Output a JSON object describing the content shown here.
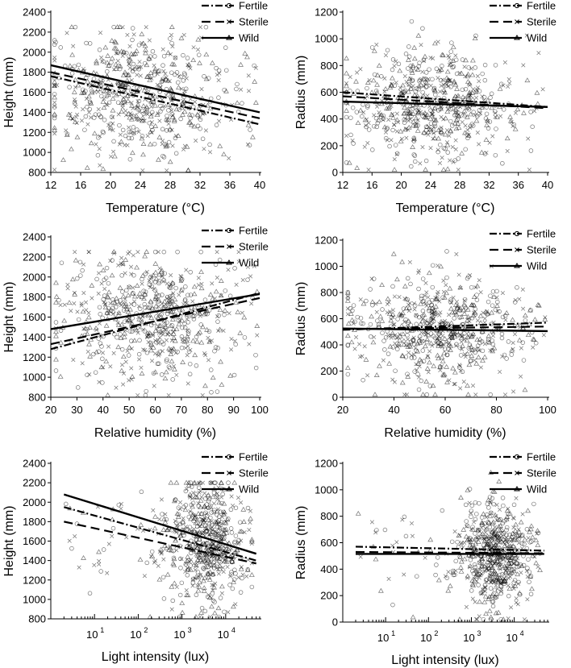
{
  "chart_data": [
    {
      "type": "scatter",
      "title": "",
      "xlabel": "Temperature (°C)",
      "ylabel": "Height (mm)",
      "xscale": "linear",
      "xlim": [
        12,
        40
      ],
      "ylim": [
        800,
        2400
      ],
      "xticks": [
        12,
        16,
        20,
        24,
        28,
        32,
        36,
        40
      ],
      "yticks": [
        800,
        1000,
        1200,
        1400,
        1600,
        1800,
        2000,
        2200,
        2400
      ],
      "legend": [
        "Fertile",
        "Sterile",
        "Wild"
      ],
      "legend_position": "top-right",
      "cloud": {
        "x_center": 24,
        "x_spread": 5.5,
        "x_min": 12.5,
        "x_max": 39.5,
        "y_center": 1600,
        "y_spread": 330,
        "y_min": 820,
        "y_max": 2250,
        "log_x": false
      },
      "series": [
        {
          "name": "Fertile",
          "x": [
            12,
            40
          ],
          "y": [
            1760,
            1280
          ]
        },
        {
          "name": "Sterile",
          "x": [
            12,
            40
          ],
          "y": [
            1800,
            1340
          ]
        },
        {
          "name": "Wild",
          "x": [
            12,
            40
          ],
          "y": [
            1870,
            1400
          ]
        }
      ]
    },
    {
      "type": "scatter",
      "title": "",
      "xlabel": "Temperature (°C)",
      "ylabel": "Radius (mm)",
      "xscale": "linear",
      "xlim": [
        12,
        40
      ],
      "ylim": [
        0,
        1200
      ],
      "xticks": [
        12,
        16,
        20,
        24,
        28,
        32,
        36,
        40
      ],
      "yticks": [
        0,
        200,
        400,
        600,
        800,
        1000,
        1200
      ],
      "legend": [
        "Fertile",
        "Sterile",
        "Wild"
      ],
      "legend_position": "top-right",
      "cloud": {
        "x_center": 24,
        "x_spread": 5.5,
        "x_min": 12.5,
        "x_max": 39.5,
        "y_center": 520,
        "y_spread": 210,
        "y_min": 20,
        "y_max": 1130,
        "log_x": false
      },
      "series": [
        {
          "name": "Fertile",
          "x": [
            12,
            40
          ],
          "y": [
            600,
            490
          ]
        },
        {
          "name": "Sterile",
          "x": [
            12,
            40
          ],
          "y": [
            570,
            480
          ]
        },
        {
          "name": "Wild",
          "x": [
            12,
            40
          ],
          "y": [
            530,
            490
          ]
        }
      ]
    },
    {
      "type": "scatter",
      "title": "",
      "xlabel": "Relative humidity (%)",
      "ylabel": "Height (mm)",
      "xscale": "linear",
      "xlim": [
        20,
        100
      ],
      "ylim": [
        800,
        2400
      ],
      "xticks": [
        20,
        30,
        40,
        50,
        60,
        70,
        80,
        90,
        100
      ],
      "yticks": [
        800,
        1000,
        1200,
        1400,
        1600,
        1800,
        2000,
        2200,
        2400
      ],
      "legend": [
        "Fertile",
        "Sterile",
        "Wild"
      ],
      "legend_position": "top-right",
      "cloud": {
        "x_center": 58,
        "x_spread": 17,
        "x_min": 22,
        "x_max": 99,
        "y_center": 1600,
        "y_spread": 320,
        "y_min": 820,
        "y_max": 2250,
        "log_x": false
      },
      "series": [
        {
          "name": "Fertile",
          "x": [
            20,
            100
          ],
          "y": [
            1280,
            1840
          ]
        },
        {
          "name": "Sterile",
          "x": [
            20,
            100
          ],
          "y": [
            1330,
            1790
          ]
        },
        {
          "name": "Wild",
          "x": [
            20,
            100
          ],
          "y": [
            1480,
            1830
          ]
        }
      ]
    },
    {
      "type": "scatter",
      "title": "",
      "xlabel": "Relative humidity (%)",
      "ylabel": "Radius (mm)",
      "xscale": "linear",
      "xlim": [
        20,
        100
      ],
      "ylim": [
        0,
        1200
      ],
      "xticks": [
        20,
        40,
        60,
        80,
        100
      ],
      "yticks": [
        0,
        200,
        400,
        600,
        800,
        1000,
        1200
      ],
      "legend": [
        "Fertile",
        "Sterile",
        "Wild"
      ],
      "legend_position": "top-right",
      "cloud": {
        "x_center": 57,
        "x_spread": 16,
        "x_min": 22,
        "x_max": 99,
        "y_center": 520,
        "y_spread": 200,
        "y_min": 20,
        "y_max": 1130,
        "log_x": false
      },
      "series": [
        {
          "name": "Fertile",
          "x": [
            20,
            100
          ],
          "y": [
            515,
            570
          ]
        },
        {
          "name": "Sterile",
          "x": [
            20,
            100
          ],
          "y": [
            520,
            540
          ]
        },
        {
          "name": "Wild",
          "x": [
            20,
            100
          ],
          "y": [
            525,
            505
          ]
        }
      ]
    },
    {
      "type": "scatter",
      "title": "",
      "xlabel": "Light intensity (lux)",
      "ylabel": "Height (mm)",
      "xscale": "log",
      "xlim": [
        1,
        60000
      ],
      "ylim": [
        800,
        2400
      ],
      "xticks": [
        10,
        100,
        1000,
        10000
      ],
      "xtick_labels": [
        "10",
        "10",
        "10",
        "10"
      ],
      "xtick_exponents": [
        "1",
        "2",
        "3",
        "4"
      ],
      "yticks": [
        800,
        1000,
        1200,
        1400,
        1600,
        1800,
        2000,
        2200,
        2400
      ],
      "legend": [
        "Fertile",
        "Sterile",
        "Wild"
      ],
      "legend_position": "top-right",
      "cloud": {
        "x_center": 3.55,
        "x_spread": 0.42,
        "x_min": 0.3,
        "x_max": 4.6,
        "y_center": 1600,
        "y_spread": 320,
        "y_min": 820,
        "y_max": 2200,
        "log_x": true
      },
      "series": [
        {
          "name": "Fertile",
          "x": [
            2,
            50000
          ],
          "y": [
            1950,
            1400
          ]
        },
        {
          "name": "Sterile",
          "x": [
            2,
            50000
          ],
          "y": [
            1800,
            1370
          ]
        },
        {
          "name": "Wild",
          "x": [
            2,
            50000
          ],
          "y": [
            2080,
            1470
          ]
        }
      ]
    },
    {
      "type": "scatter",
      "title": "",
      "xlabel": "Light intensity (lux)",
      "ylabel": "Radius (mm)",
      "xscale": "log",
      "xlim": [
        1,
        60000
      ],
      "ylim": [
        0,
        1200
      ],
      "xticks": [
        10,
        100,
        1000,
        10000
      ],
      "xtick_labels": [
        "10",
        "10",
        "10",
        "10"
      ],
      "xtick_exponents": [
        "1",
        "2",
        "3",
        "4"
      ],
      "yticks": [
        0,
        200,
        400,
        600,
        800,
        1000,
        1200
      ],
      "legend": [
        "Fertile",
        "Sterile",
        "Wild"
      ],
      "legend_position": "top-right",
      "cloud": {
        "x_center": 3.55,
        "x_spread": 0.4,
        "x_min": 0.3,
        "x_max": 4.6,
        "y_center": 520,
        "y_spread": 200,
        "y_min": 20,
        "y_max": 1130,
        "log_x": true
      },
      "series": [
        {
          "name": "Fertile",
          "x": [
            2,
            50000
          ],
          "y": [
            570,
            540
          ]
        },
        {
          "name": "Sterile",
          "x": [
            2,
            50000
          ],
          "y": [
            530,
            520
          ]
        },
        {
          "name": "Wild",
          "x": [
            2,
            50000
          ],
          "y": [
            515,
            515
          ]
        }
      ]
    }
  ]
}
